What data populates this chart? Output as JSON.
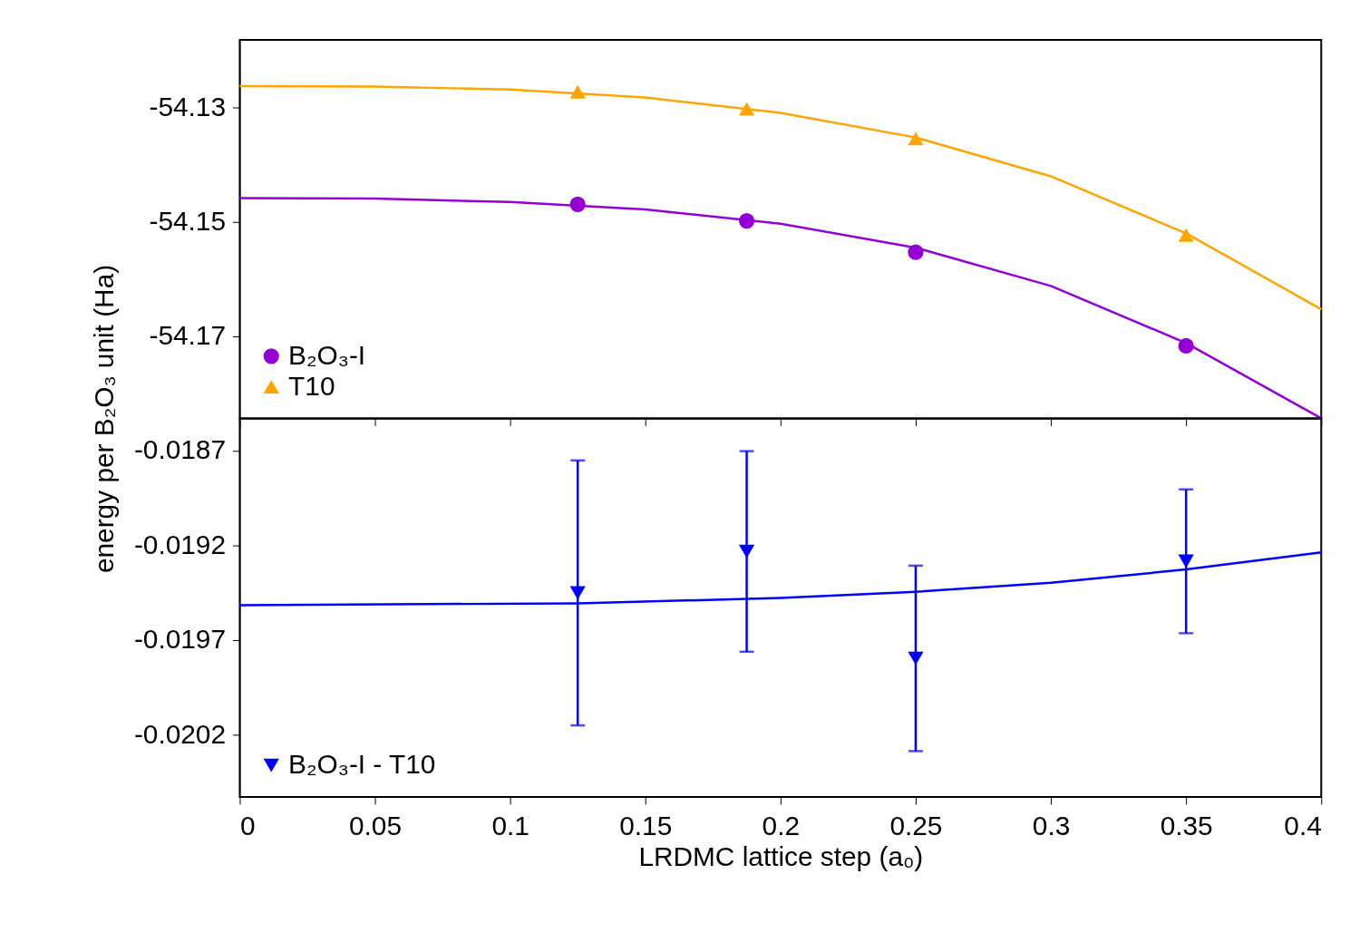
{
  "chart_data": [
    {
      "type": "line",
      "ylabel": "energy per B₂O₃ unit (Ha)",
      "xlim": [
        0,
        0.4
      ],
      "xticks": [
        0,
        0.05,
        0.1,
        0.15,
        0.2,
        0.25,
        0.3,
        0.35,
        0.4
      ],
      "ylim": [
        -54.1844,
        -54.1181
      ],
      "yticks": [
        -54.13,
        -54.15,
        -54.17
      ],
      "tick_labels": "y",
      "grid": false,
      "legend": "bottom left",
      "series": [
        {
          "name": "B₂O₃-I",
          "type": "scatter",
          "marker": "circle",
          "color": "#9400d3",
          "x": [
            0.125,
            0.1875,
            0.25,
            0.35
          ],
          "values": [
            -54.1469,
            -54.1498,
            -54.1553,
            -54.1717
          ]
        },
        {
          "name": "T10",
          "type": "scatter",
          "marker": "triangle",
          "color": "#ffa500",
          "x": [
            0.125,
            0.1875,
            0.25,
            0.35
          ],
          "values": [
            -54.1272,
            -54.1302,
            -54.1354,
            -54.1523
          ]
        },
        {
          "color": "#9400d3",
          "x": [
            0,
            0.05,
            0.1,
            0.15,
            0.2,
            0.25,
            0.3,
            0.35,
            0.4
          ],
          "values": [
            -54.1458,
            -54.1459,
            -54.1465,
            -54.1478,
            -54.1503,
            -54.1545,
            -54.1612,
            -54.1712,
            -54.1844
          ]
        },
        {
          "color": "#ffa500",
          "x": [
            0,
            0.05,
            0.1,
            0.15,
            0.2,
            0.25,
            0.3,
            0.35,
            0.4
          ],
          "values": [
            -54.1262,
            -54.1263,
            -54.1268,
            -54.1282,
            -54.1309,
            -54.1352,
            -54.142,
            -54.152,
            -54.1653
          ]
        }
      ]
    },
    {
      "type": "line",
      "xlabel": "LRDMC lattice step (a₀)",
      "xlim": [
        0,
        0.4
      ],
      "xticks": [
        0,
        0.05,
        0.1,
        0.15,
        0.2,
        0.25,
        0.3,
        0.35,
        0.4
      ],
      "ylim": [
        -0.02053,
        -0.01853
      ],
      "yticks": [
        -0.0187,
        -0.0192,
        -0.0197,
        -0.0202
      ],
      "grid": false,
      "legend": "bottom left",
      "series": [
        {
          "name": "B₂O₃-I - T10",
          "type": "scatter",
          "marker": "triangle-down",
          "color": "#0000ff",
          "x": [
            0.125,
            0.1875,
            0.25,
            0.35
          ],
          "values": [
            -0.019452,
            -0.019233,
            -0.019798,
            -0.019285
          ],
          "errors": [
            0.0007,
            0.00053,
            0.00049,
            0.00038
          ]
        },
        {
          "color": "#0000ff",
          "x": [
            0,
            0.125,
            0.2,
            0.25,
            0.3,
            0.35,
            0.4
          ],
          "values": [
            -0.019517,
            -0.019507,
            -0.019479,
            -0.019446,
            -0.019399,
            -0.019328,
            -0.019238
          ]
        }
      ]
    }
  ]
}
